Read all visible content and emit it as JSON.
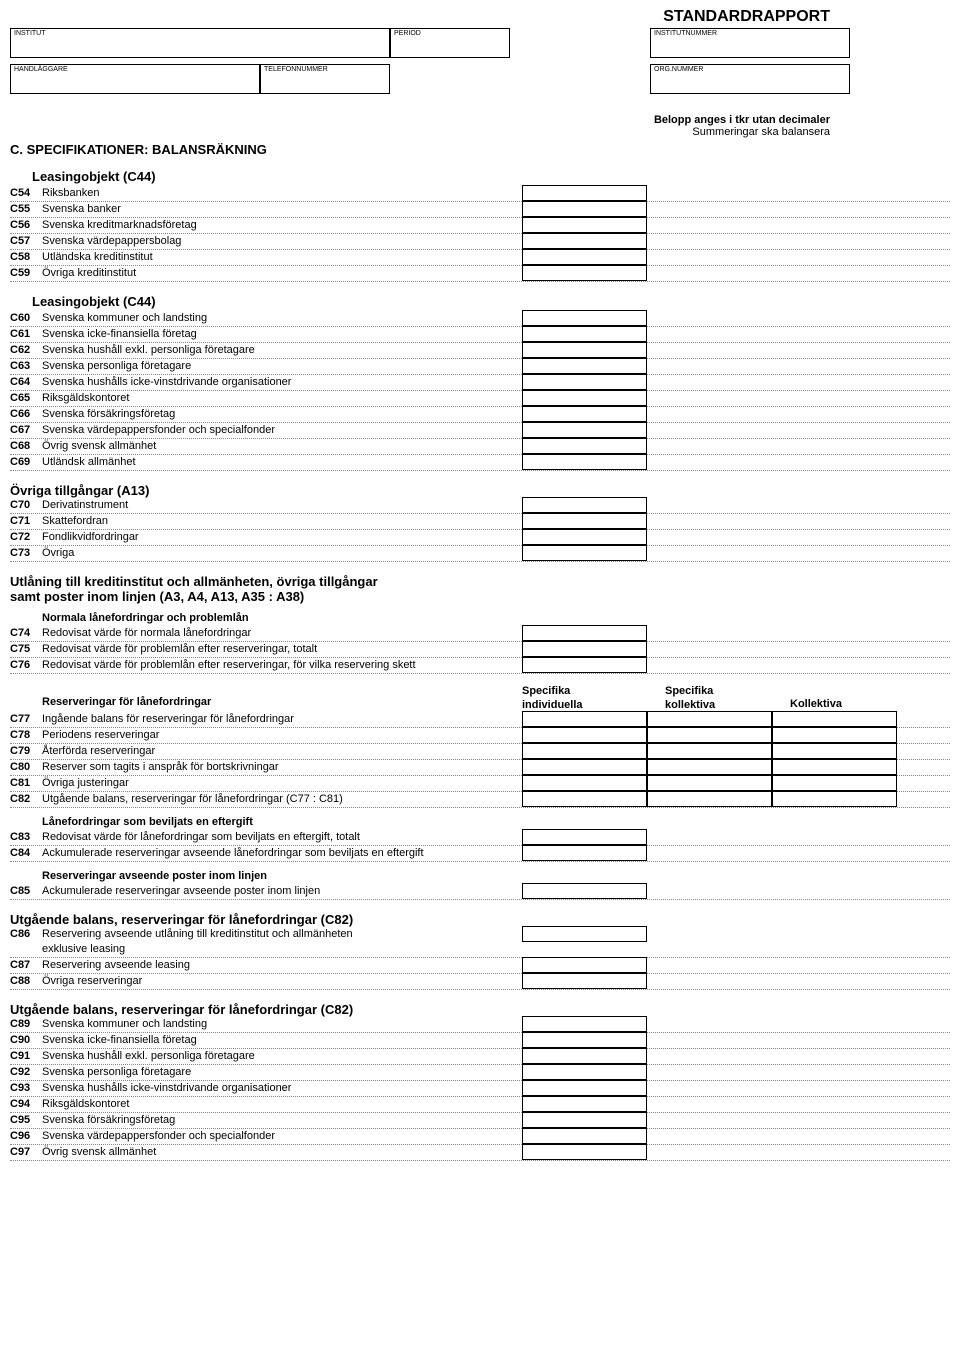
{
  "report_title": "STANDARDRAPPORT",
  "header": {
    "institut": "INSTITUT",
    "period": "PERIOD",
    "institutnummer": "INSTITUTNUMMER",
    "handlaggare": "HANDLÄGGARE",
    "telefon": "TELEFONNUMMER",
    "orgnr": "ORG.NUMMER"
  },
  "right_note_bold": "Belopp anges i tkr utan decimaler",
  "right_note_sub": "Summeringar ska balansera",
  "section_title": "C. SPECIFIKATIONER: BALANSRÄKNING",
  "g1": {
    "title": "Leasingobjekt (C44)",
    "rows": [
      {
        "code": "C54",
        "label": "Riksbanken"
      },
      {
        "code": "C55",
        "label": "Svenska banker"
      },
      {
        "code": "C56",
        "label": "Svenska kreditmarknadsföretag"
      },
      {
        "code": "C57",
        "label": "Svenska värdepappersbolag"
      },
      {
        "code": "C58",
        "label": "Utländska kreditinstitut"
      },
      {
        "code": "C59",
        "label": "Övriga kreditinstitut"
      }
    ]
  },
  "g2": {
    "title": "Leasingobjekt (C44)",
    "rows": [
      {
        "code": "C60",
        "label": "Svenska kommuner och landsting"
      },
      {
        "code": "C61",
        "label": "Svenska icke-finansiella företag"
      },
      {
        "code": "C62",
        "label": "Svenska hushåll exkl. personliga företagare"
      },
      {
        "code": "C63",
        "label": "Svenska personliga företagare"
      },
      {
        "code": "C64",
        "label": "Svenska hushålls icke-vinstdrivande organisationer"
      },
      {
        "code": "C65",
        "label": "Riksgäldskontoret"
      },
      {
        "code": "C66",
        "label": "Svenska försäkringsföretag"
      },
      {
        "code": "C67",
        "label": "Svenska värdepappersfonder och specialfonder"
      },
      {
        "code": "C68",
        "label": "Övrig svensk allmänhet"
      },
      {
        "code": "C69",
        "label": "Utländsk allmänhet"
      }
    ]
  },
  "g3": {
    "title": "Övriga tillgångar (A13)",
    "rows": [
      {
        "code": "C70",
        "label": "Derivatinstrument"
      },
      {
        "code": "C71",
        "label": "Skattefordran"
      },
      {
        "code": "C72",
        "label": "Fondlikvidfordringar"
      },
      {
        "code": "C73",
        "label": "Övriga"
      }
    ]
  },
  "g4": {
    "title1": "Utlåning till kreditinstitut och allmänheten, övriga tillgångar",
    "title2": "samt poster inom linjen (A3, A4, A13, A35 : A38)",
    "sub1": "Normala lånefordringar och problemlån",
    "rows1": [
      {
        "code": "C74",
        "label": "Redovisat värde för normala lånefordringar"
      },
      {
        "code": "C75",
        "label": "Redovisat värde för problemlån efter reserveringar, totalt"
      },
      {
        "code": "C76",
        "label": "Redovisat värde för problemlån efter reserveringar, för vilka reservering skett"
      }
    ],
    "col_h1a": "Specifika",
    "col_h1b": "individuella",
    "col_h2a": "Specifika",
    "col_h2b": "kollektiva",
    "col_h3": "Kollektiva",
    "sub2": "Reserveringar för lånefordringar",
    "rows2": [
      {
        "code": "C77",
        "label": "Ingående balans för reserveringar för lånefordringar"
      },
      {
        "code": "C78",
        "label": "Periodens reserveringar"
      },
      {
        "code": "C79",
        "label": "Återförda reserveringar"
      },
      {
        "code": "C80",
        "label": "Reserver som tagits i anspråk för bortskrivningar"
      },
      {
        "code": "C81",
        "label": "Övriga justeringar"
      },
      {
        "code": "C82",
        "label": "Utgående balans, reserveringar för lånefordringar (C77 : C81)"
      }
    ],
    "sub3": "Lånefordringar som beviljats en eftergift",
    "rows3": [
      {
        "code": "C83",
        "label": "Redovisat värde för lånefordringar som beviljats en eftergift, totalt"
      },
      {
        "code": "C84",
        "label": "Ackumulerade reserveringar avseende lånefordringar som beviljats en eftergift"
      }
    ],
    "sub4": "Reserveringar avseende poster inom linjen",
    "rows4": [
      {
        "code": "C85",
        "label": "Ackumulerade reserveringar avseende poster inom linjen"
      }
    ]
  },
  "g5": {
    "title": "Utgående balans, reserveringar för lånefordringar (C82)",
    "rows": [
      {
        "code": "C86",
        "label": "Reservering avseende utlåning till kreditinstitut och allmänheten",
        "label2": "exklusive leasing"
      },
      {
        "code": "C87",
        "label": "Reservering avseende leasing"
      },
      {
        "code": "C88",
        "label": "Övriga reserveringar"
      }
    ]
  },
  "g6": {
    "title": "Utgående balans, reserveringar för lånefordringar (C82)",
    "rows": [
      {
        "code": "C89",
        "label": "Svenska kommuner och landsting"
      },
      {
        "code": "C90",
        "label": "Svenska icke-finansiella företag"
      },
      {
        "code": "C91",
        "label": "Svenska hushåll exkl. personliga företagare"
      },
      {
        "code": "C92",
        "label": "Svenska personliga företagare"
      },
      {
        "code": "C93",
        "label": "Svenska hushålls icke-vinstdrivande organisationer"
      },
      {
        "code": "C94",
        "label": "Riksgäldskontoret"
      },
      {
        "code": "C95",
        "label": "Svenska försäkringsföretag"
      },
      {
        "code": "C96",
        "label": "Svenska värdepappersfonder och specialfonder"
      },
      {
        "code": "C97",
        "label": "Övrig svensk allmänhet"
      }
    ]
  }
}
